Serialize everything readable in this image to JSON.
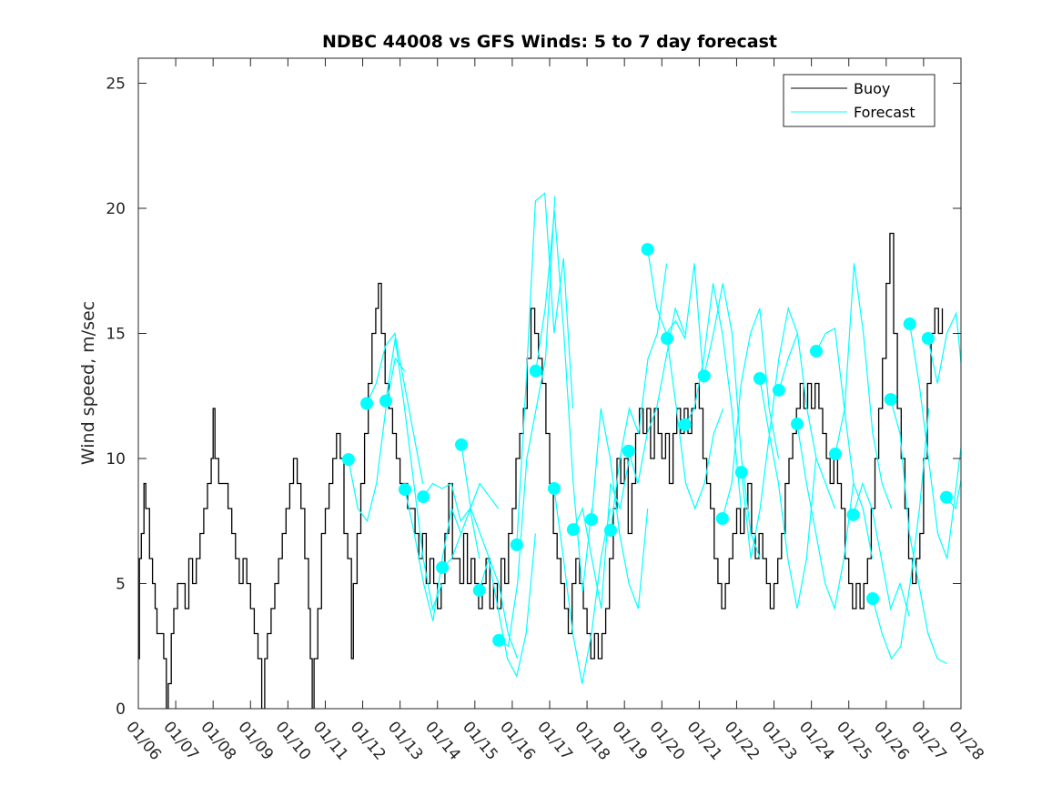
{
  "chart_data": {
    "type": "line",
    "title": "NDBC 44008 vs GFS Winds: 5 to 7 day forecast",
    "xlabel": "",
    "ylabel": "Wind speed, m/sec",
    "x_unit": "days since 01/06",
    "xlim": [
      0,
      22
    ],
    "ylim": [
      0,
      26
    ],
    "x_tick_labels": [
      "01/06",
      "01/07",
      "01/08",
      "01/09",
      "01/10",
      "01/11",
      "01/12",
      "01/13",
      "01/14",
      "01/15",
      "01/16",
      "01/17",
      "01/18",
      "01/19",
      "01/20",
      "01/21",
      "01/22",
      "01/23",
      "01/24",
      "01/25",
      "01/26",
      "01/27",
      "01/28"
    ],
    "y_ticks": [
      0,
      5,
      10,
      15,
      20,
      25
    ],
    "grid": false,
    "legend": {
      "placement": "top-right",
      "entries": [
        "Buoy",
        "Forecast"
      ]
    },
    "colors": {
      "buoy": "#000000",
      "forecast": "#00ffff",
      "axis": "#262626"
    },
    "buoy": [
      [
        0,
        2
      ],
      [
        0.03,
        6
      ],
      [
        0.08,
        7
      ],
      [
        0.15,
        9
      ],
      [
        0.2,
        8
      ],
      [
        0.3,
        6
      ],
      [
        0.38,
        5
      ],
      [
        0.45,
        4
      ],
      [
        0.5,
        3
      ],
      [
        0.6,
        3
      ],
      [
        0.68,
        2
      ],
      [
        0.75,
        0
      ],
      [
        0.8,
        1
      ],
      [
        0.88,
        3
      ],
      [
        0.95,
        4
      ],
      [
        1.05,
        5
      ],
      [
        1.15,
        5
      ],
      [
        1.25,
        4
      ],
      [
        1.35,
        6
      ],
      [
        1.45,
        5
      ],
      [
        1.55,
        6
      ],
      [
        1.65,
        7
      ],
      [
        1.75,
        8
      ],
      [
        1.85,
        9
      ],
      [
        1.95,
        10
      ],
      [
        2.0,
        12
      ],
      [
        2.05,
        10
      ],
      [
        2.15,
        9
      ],
      [
        2.3,
        9
      ],
      [
        2.4,
        8
      ],
      [
        2.5,
        7
      ],
      [
        2.6,
        6
      ],
      [
        2.7,
        5
      ],
      [
        2.8,
        6
      ],
      [
        2.9,
        5
      ],
      [
        3.0,
        4
      ],
      [
        3.1,
        3
      ],
      [
        3.2,
        2
      ],
      [
        3.3,
        0
      ],
      [
        3.38,
        2
      ],
      [
        3.45,
        3
      ],
      [
        3.55,
        4
      ],
      [
        3.65,
        5
      ],
      [
        3.75,
        6
      ],
      [
        3.85,
        7
      ],
      [
        3.95,
        8
      ],
      [
        4.05,
        9
      ],
      [
        4.15,
        10
      ],
      [
        4.25,
        9
      ],
      [
        4.35,
        8
      ],
      [
        4.45,
        6
      ],
      [
        4.55,
        4
      ],
      [
        4.6,
        2
      ],
      [
        4.65,
        0
      ],
      [
        4.7,
        2
      ],
      [
        4.8,
        4
      ],
      [
        4.9,
        7
      ],
      [
        5.0,
        8
      ],
      [
        5.1,
        9
      ],
      [
        5.2,
        10
      ],
      [
        5.3,
        11
      ],
      [
        5.4,
        10
      ],
      [
        5.5,
        7
      ],
      [
        5.6,
        6
      ],
      [
        5.7,
        2
      ],
      [
        5.75,
        5
      ],
      [
        5.85,
        7
      ],
      [
        5.95,
        9
      ],
      [
        6.05,
        11
      ],
      [
        6.15,
        13
      ],
      [
        6.25,
        15
      ],
      [
        6.35,
        16
      ],
      [
        6.42,
        17
      ],
      [
        6.5,
        15
      ],
      [
        6.6,
        13
      ],
      [
        6.7,
        12
      ],
      [
        6.8,
        11
      ],
      [
        6.9,
        10
      ],
      [
        7.0,
        9
      ],
      [
        7.1,
        9
      ],
      [
        7.2,
        8
      ],
      [
        7.3,
        8
      ],
      [
        7.4,
        7
      ],
      [
        7.5,
        6
      ],
      [
        7.6,
        7
      ],
      [
        7.7,
        5
      ],
      [
        7.8,
        6
      ],
      [
        7.9,
        5
      ],
      [
        8.0,
        4
      ],
      [
        8.1,
        5
      ],
      [
        8.2,
        7
      ],
      [
        8.3,
        9
      ],
      [
        8.4,
        6
      ],
      [
        8.5,
        6
      ],
      [
        8.6,
        5
      ],
      [
        8.7,
        7
      ],
      [
        8.8,
        5
      ],
      [
        8.9,
        6
      ],
      [
        9.0,
        5
      ],
      [
        9.1,
        4
      ],
      [
        9.2,
        5
      ],
      [
        9.3,
        6
      ],
      [
        9.4,
        4
      ],
      [
        9.5,
        5
      ],
      [
        9.6,
        4
      ],
      [
        9.7,
        6
      ],
      [
        9.8,
        5
      ],
      [
        9.9,
        7
      ],
      [
        10.0,
        8
      ],
      [
        10.1,
        10
      ],
      [
        10.2,
        11
      ],
      [
        10.3,
        12
      ],
      [
        10.4,
        14
      ],
      [
        10.5,
        16
      ],
      [
        10.6,
        15
      ],
      [
        10.7,
        14
      ],
      [
        10.8,
        13
      ],
      [
        10.9,
        11
      ],
      [
        11.0,
        9
      ],
      [
        11.1,
        7
      ],
      [
        11.2,
        6
      ],
      [
        11.3,
        5
      ],
      [
        11.4,
        4
      ],
      [
        11.5,
        3
      ],
      [
        11.6,
        5
      ],
      [
        11.7,
        6
      ],
      [
        11.8,
        5
      ],
      [
        11.9,
        4
      ],
      [
        12.0,
        3
      ],
      [
        12.1,
        2
      ],
      [
        12.2,
        3
      ],
      [
        12.3,
        2
      ],
      [
        12.4,
        3
      ],
      [
        12.5,
        4
      ],
      [
        12.6,
        6
      ],
      [
        12.7,
        8
      ],
      [
        12.8,
        10
      ],
      [
        12.9,
        9
      ],
      [
        13.0,
        10
      ],
      [
        13.1,
        7
      ],
      [
        13.2,
        9
      ],
      [
        13.3,
        11
      ],
      [
        13.4,
        12
      ],
      [
        13.5,
        11
      ],
      [
        13.6,
        12
      ],
      [
        13.7,
        10
      ],
      [
        13.8,
        12
      ],
      [
        13.9,
        11
      ],
      [
        14.0,
        10
      ],
      [
        14.1,
        11
      ],
      [
        14.2,
        9
      ],
      [
        14.3,
        11
      ],
      [
        14.4,
        12
      ],
      [
        14.5,
        11
      ],
      [
        14.6,
        12
      ],
      [
        14.7,
        11
      ],
      [
        14.8,
        12
      ],
      [
        14.9,
        13
      ],
      [
        15.0,
        12
      ],
      [
        15.1,
        10
      ],
      [
        15.2,
        9
      ],
      [
        15.3,
        8
      ],
      [
        15.4,
        6
      ],
      [
        15.5,
        5
      ],
      [
        15.6,
        4
      ],
      [
        15.7,
        5
      ],
      [
        15.8,
        6
      ],
      [
        15.9,
        7
      ],
      [
        16.0,
        8
      ],
      [
        16.1,
        7
      ],
      [
        16.2,
        8
      ],
      [
        16.3,
        9
      ],
      [
        16.4,
        7
      ],
      [
        16.5,
        6
      ],
      [
        16.6,
        7
      ],
      [
        16.7,
        6
      ],
      [
        16.8,
        5
      ],
      [
        16.9,
        4
      ],
      [
        17.0,
        5
      ],
      [
        17.1,
        6
      ],
      [
        17.2,
        7
      ],
      [
        17.3,
        9
      ],
      [
        17.4,
        10
      ],
      [
        17.5,
        11
      ],
      [
        17.6,
        12
      ],
      [
        17.7,
        13
      ],
      [
        17.8,
        12
      ],
      [
        17.9,
        13
      ],
      [
        18.0,
        12
      ],
      [
        18.1,
        13
      ],
      [
        18.2,
        12
      ],
      [
        18.3,
        11
      ],
      [
        18.4,
        10
      ],
      [
        18.5,
        9
      ],
      [
        18.6,
        10
      ],
      [
        18.7,
        9
      ],
      [
        18.8,
        8
      ],
      [
        18.9,
        6
      ],
      [
        19.0,
        5
      ],
      [
        19.1,
        4
      ],
      [
        19.2,
        5
      ],
      [
        19.3,
        4
      ],
      [
        19.4,
        5
      ],
      [
        19.5,
        6
      ],
      [
        19.6,
        8
      ],
      [
        19.7,
        10
      ],
      [
        19.8,
        12
      ],
      [
        19.9,
        14
      ],
      [
        20.0,
        17
      ],
      [
        20.1,
        19
      ],
      [
        20.2,
        15
      ],
      [
        20.3,
        12
      ],
      [
        20.4,
        10
      ],
      [
        20.5,
        8
      ],
      [
        20.6,
        6
      ],
      [
        20.7,
        5
      ],
      [
        20.8,
        6
      ],
      [
        20.9,
        7
      ],
      [
        21.0,
        10
      ],
      [
        21.1,
        13
      ],
      [
        21.2,
        15
      ],
      [
        21.3,
        16
      ],
      [
        21.4,
        15
      ],
      [
        21.5,
        16
      ]
    ],
    "forecast_step_days": 0.25,
    "forecasts": [
      {
        "start": 5.62,
        "values": [
          9.96,
          8,
          7.5,
          9,
          12,
          14,
          13.5
        ]
      },
      {
        "start": 6.11,
        "values": [
          12.2,
          13,
          14.5,
          15,
          13,
          11,
          9
        ]
      },
      {
        "start": 6.62,
        "values": [
          12.3,
          14.8,
          12,
          9,
          6,
          4,
          5
        ]
      },
      {
        "start": 7.13,
        "values": [
          8.76,
          7,
          5,
          3.5,
          6,
          8,
          7
        ]
      },
      {
        "start": 7.62,
        "values": [
          8.47,
          9,
          8.8,
          9,
          7.5,
          8,
          6
        ]
      },
      {
        "start": 8.13,
        "values": [
          5.64,
          6,
          7,
          8,
          9,
          8.5,
          8
        ]
      },
      {
        "start": 8.64,
        "values": [
          10.55,
          8,
          7,
          6,
          5,
          3,
          2
        ]
      },
      {
        "start": 9.12,
        "values": [
          4.73,
          6,
          4,
          2,
          1.3,
          3,
          7
        ]
      },
      {
        "start": 9.64,
        "values": [
          2.73,
          2.5,
          5,
          10,
          12,
          14,
          20.5
        ]
      },
      {
        "start": 10.12,
        "values": [
          6.55,
          13,
          20.3,
          20.6,
          15,
          18,
          12
        ]
      },
      {
        "start": 10.63,
        "values": [
          13.5,
          16,
          19.9,
          15,
          9,
          4.7,
          8
        ]
      },
      {
        "start": 11.12,
        "values": [
          8.8,
          6,
          3,
          1,
          3,
          6,
          8
        ]
      },
      {
        "start": 11.63,
        "values": [
          7.16,
          8,
          6,
          4,
          9,
          8,
          10
        ]
      },
      {
        "start": 12.12,
        "values": [
          7.56,
          12,
          10,
          7,
          5,
          4,
          8
        ]
      },
      {
        "start": 12.63,
        "values": [
          7.13,
          10,
          12,
          11,
          14,
          15,
          17.8
        ]
      },
      {
        "start": 13.11,
        "values": [
          10.3,
          9,
          11,
          12,
          14,
          16,
          15
        ]
      },
      {
        "start": 13.62,
        "values": [
          18.36,
          16,
          15,
          15.5,
          14.8,
          17.8,
          13
        ]
      },
      {
        "start": 14.14,
        "values": [
          14.8,
          12,
          9,
          8,
          9,
          11,
          12
        ]
      },
      {
        "start": 14.62,
        "values": [
          11.35,
          12,
          14,
          17,
          15,
          12,
          8
        ]
      },
      {
        "start": 15.13,
        "values": [
          13.3,
          15,
          17,
          15,
          10,
          7,
          6
        ]
      },
      {
        "start": 15.62,
        "values": [
          7.6,
          9,
          13,
          15,
          16,
          12,
          10
        ]
      },
      {
        "start": 16.13,
        "values": [
          9.45,
          6,
          8,
          11,
          14,
          16,
          15
        ]
      },
      {
        "start": 16.62,
        "values": [
          13.2,
          11,
          9,
          6,
          4,
          6,
          10
        ]
      },
      {
        "start": 17.13,
        "values": [
          12.73,
          14,
          15,
          12,
          10,
          9,
          8
        ]
      },
      {
        "start": 17.62,
        "values": [
          11.38,
          9,
          7,
          5,
          4,
          6,
          9
        ]
      },
      {
        "start": 18.13,
        "values": [
          14.29,
          15,
          15.2,
          12,
          9,
          8,
          6
        ]
      },
      {
        "start": 18.64,
        "values": [
          10.18,
          12,
          17.8,
          15,
          11,
          9,
          8
        ]
      },
      {
        "start": 19.12,
        "values": [
          7.75,
          9,
          8,
          6,
          4,
          5,
          3.7
        ]
      },
      {
        "start": 19.64,
        "values": [
          4.4,
          3,
          2,
          2.5,
          5,
          8,
          12
        ]
      },
      {
        "start": 20.12,
        "values": [
          12.36,
          11,
          7,
          5,
          3,
          2,
          1.8
        ]
      },
      {
        "start": 20.63,
        "values": [
          15.38,
          13,
          10,
          7,
          6,
          9,
          12
        ]
      },
      {
        "start": 21.12,
        "values": [
          14.8,
          13,
          15,
          15.8,
          12,
          11,
          11.8
        ]
      },
      {
        "start": 21.61,
        "values": [
          8.45,
          8,
          10,
          13,
          15.4
        ]
      }
    ]
  }
}
